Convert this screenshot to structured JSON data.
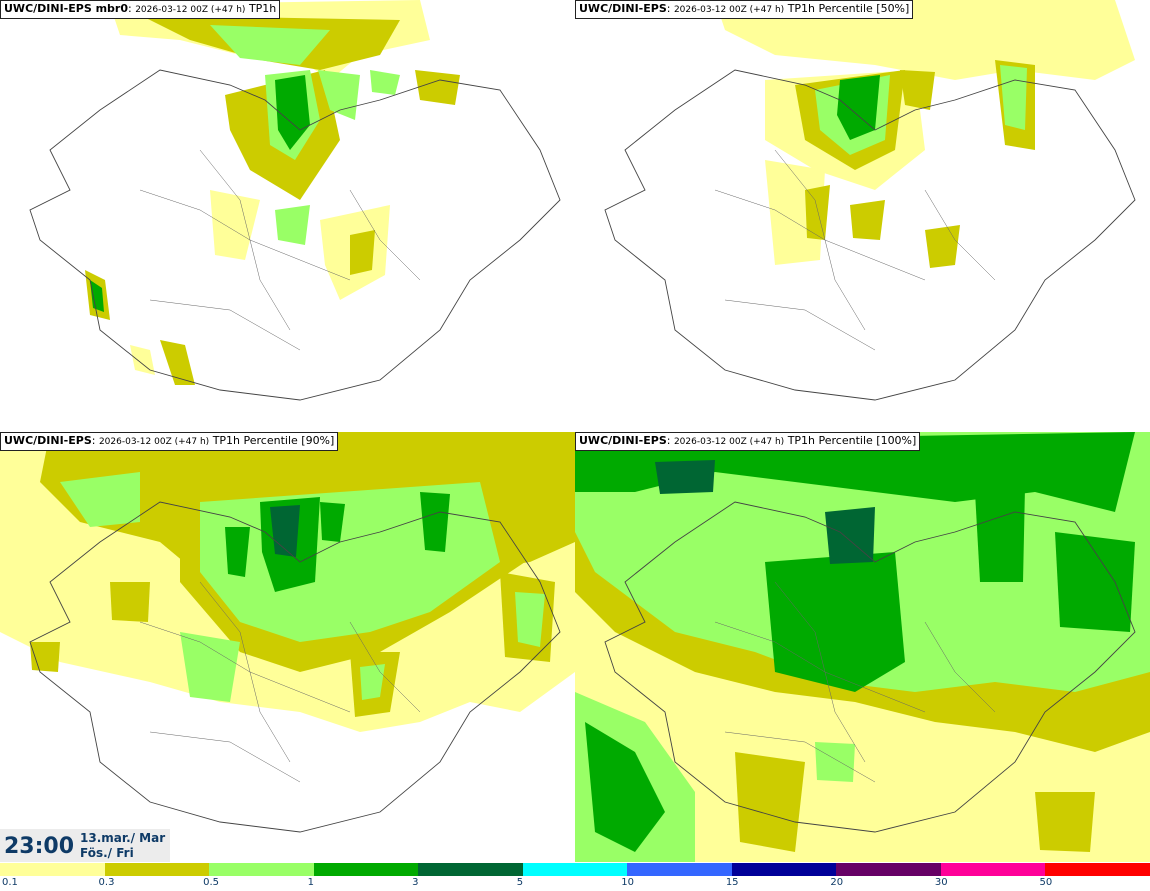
{
  "panels": [
    {
      "model": "UWC/DINI-EPS mbr0",
      "meta": "2026-03-12 00Z (+47 h)",
      "field": "TP1h"
    },
    {
      "model": "UWC/DINI-EPS",
      "meta": "2026-03-12 00Z (+47 h)",
      "field": "TP1h Percentile [50%]"
    },
    {
      "model": "UWC/DINI-EPS",
      "meta": "2026-03-12 00Z (+47 h)",
      "field": "TP1h Percentile [90%]"
    },
    {
      "model": "UWC/DINI-EPS",
      "meta": "2026-03-12 00Z (+47 h)",
      "field": "TP1h Percentile [100%]"
    }
  ],
  "time": {
    "hour": "23:00",
    "date": "13.mar./ Mar",
    "weekday": "Fös./ Fri"
  },
  "legend": {
    "labels": [
      "0.1",
      "0.3",
      "0.5",
      "1",
      "3",
      "5",
      "10",
      "15",
      "20",
      "30",
      "50"
    ],
    "colors": [
      "#ffff99",
      "#cccc00",
      "#99ff66",
      "#00aa00",
      "#006633",
      "#00ffff",
      "#3366ff",
      "#000099",
      "#660066",
      "#ff0099",
      "#ff0000"
    ]
  }
}
